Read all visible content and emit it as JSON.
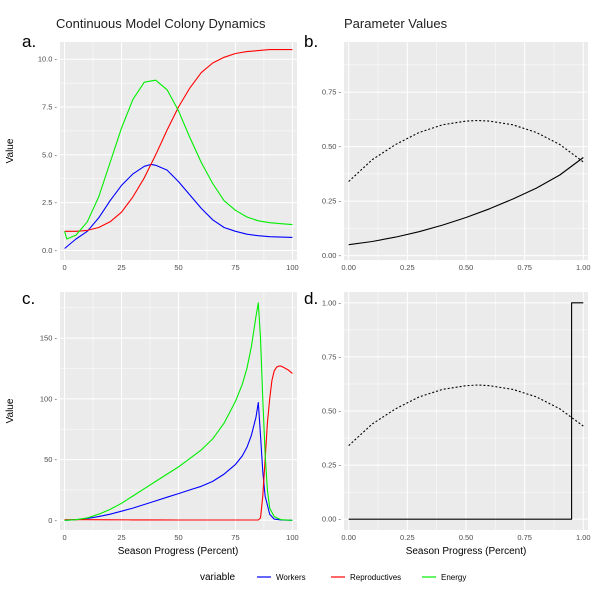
{
  "chart_data": [
    {
      "panel": "a.",
      "title": "Continuous Model Colony Dynamics",
      "type": "line",
      "ylabel": "Value",
      "xlabel": "",
      "xlim": [
        -2,
        102
      ],
      "ylim": [
        -0.5,
        10.9
      ],
      "xticks": [
        0,
        25,
        50,
        75,
        100
      ],
      "yticks": [
        0.0,
        2.5,
        5.0,
        7.5,
        10.0
      ],
      "ytick_labels": [
        "0.0 -",
        "2.5 -",
        "5.0 -",
        "7.5 -",
        "10.0 -"
      ],
      "grid": true,
      "series": [
        {
          "name": "Workers",
          "color": "#0000ff",
          "style": "solid",
          "x": [
            0,
            5,
            10,
            15,
            20,
            25,
            30,
            35,
            38,
            40,
            45,
            50,
            55,
            60,
            65,
            70,
            75,
            80,
            85,
            90,
            95,
            100
          ],
          "y": [
            0.1,
            0.6,
            1.0,
            1.7,
            2.6,
            3.4,
            4.0,
            4.4,
            4.5,
            4.45,
            4.2,
            3.6,
            2.9,
            2.2,
            1.6,
            1.2,
            1.0,
            0.85,
            0.77,
            0.72,
            0.7,
            0.68
          ]
        },
        {
          "name": "Reproductives",
          "color": "#ff0000",
          "style": "solid",
          "x": [
            0,
            5,
            10,
            15,
            20,
            25,
            30,
            35,
            40,
            45,
            50,
            55,
            60,
            65,
            70,
            75,
            80,
            85,
            90,
            95,
            100
          ],
          "y": [
            1.0,
            1.0,
            1.05,
            1.2,
            1.5,
            2.0,
            2.8,
            3.8,
            5.0,
            6.3,
            7.5,
            8.5,
            9.3,
            9.8,
            10.1,
            10.3,
            10.4,
            10.45,
            10.5,
            10.5,
            10.5
          ]
        },
        {
          "name": "Energy",
          "color": "#00ee00",
          "style": "solid",
          "x": [
            0,
            1,
            5,
            10,
            15,
            20,
            25,
            30,
            35,
            40,
            45,
            50,
            55,
            60,
            65,
            70,
            75,
            80,
            85,
            90,
            95,
            100
          ],
          "y": [
            1.0,
            0.6,
            0.8,
            1.5,
            2.8,
            4.6,
            6.4,
            7.9,
            8.8,
            8.9,
            8.4,
            7.3,
            5.9,
            4.6,
            3.5,
            2.6,
            2.1,
            1.75,
            1.55,
            1.45,
            1.4,
            1.35
          ]
        }
      ]
    },
    {
      "panel": "b.",
      "title": "Parameter Values",
      "type": "line",
      "ylabel": "",
      "xlabel": "",
      "xlim": [
        -0.02,
        1.02
      ],
      "ylim": [
        -0.02,
        0.98
      ],
      "xticks": [
        0.0,
        0.25,
        0.5,
        0.75,
        1.0
      ],
      "xtick_labels": [
        "0.00",
        "0.25",
        "0.50",
        "0.75",
        "1.00"
      ],
      "yticks": [
        0.0,
        0.25,
        0.5,
        0.75
      ],
      "ytick_labels": [
        "0.00 -",
        "0.25 -",
        "0.50 -",
        "0.75 -"
      ],
      "grid": true,
      "series": [
        {
          "color": "#000000",
          "style": "solid",
          "x": [
            0,
            0.1,
            0.2,
            0.3,
            0.4,
            0.5,
            0.6,
            0.7,
            0.8,
            0.9,
            1.0
          ],
          "y": [
            0.05,
            0.065,
            0.085,
            0.11,
            0.14,
            0.175,
            0.215,
            0.26,
            0.31,
            0.37,
            0.45
          ]
        },
        {
          "color": "#000000",
          "style": "dotted",
          "x": [
            0,
            0.1,
            0.2,
            0.3,
            0.4,
            0.5,
            0.55,
            0.6,
            0.7,
            0.8,
            0.9,
            1.0
          ],
          "y": [
            0.34,
            0.44,
            0.51,
            0.565,
            0.6,
            0.617,
            0.62,
            0.617,
            0.6,
            0.565,
            0.51,
            0.43
          ]
        }
      ]
    },
    {
      "panel": "c.",
      "type": "line",
      "ylabel": "Value",
      "xlabel": "Season Progress (Percent)",
      "xlim": [
        -2,
        102
      ],
      "ylim": [
        -8,
        188
      ],
      "xticks": [
        0,
        25,
        50,
        75,
        100
      ],
      "yticks": [
        0,
        50,
        100,
        150
      ],
      "ytick_labels": [
        "0 -",
        "50 -",
        "100 -",
        "150 -"
      ],
      "grid": true,
      "series": [
        {
          "name": "Workers",
          "color": "#0000ff",
          "style": "solid",
          "x": [
            0,
            5,
            10,
            15,
            20,
            25,
            30,
            35,
            40,
            45,
            50,
            55,
            60,
            65,
            70,
            75,
            78,
            80,
            82,
            84,
            85,
            86,
            87,
            88,
            90,
            92,
            95,
            100
          ],
          "y": [
            0,
            0.5,
            1.5,
            3,
            5,
            7.5,
            10,
            13,
            16,
            19,
            22,
            25,
            28,
            32,
            38,
            46,
            53,
            60,
            70,
            85,
            97,
            70,
            40,
            20,
            5,
            1,
            0.3,
            0
          ]
        },
        {
          "name": "Reproductives",
          "color": "#ff0000",
          "style": "solid",
          "x": [
            0,
            10,
            20,
            30,
            40,
            50,
            60,
            70,
            80,
            85,
            86,
            87,
            88,
            89,
            90,
            91,
            92,
            93,
            94,
            95,
            96,
            97,
            98,
            100
          ],
          "y": [
            0.5,
            0.5,
            0.4,
            0.3,
            0.3,
            0.2,
            0.2,
            0.2,
            0.2,
            0.2,
            2,
            20,
            50,
            80,
            100,
            115,
            123,
            126,
            127,
            127,
            126,
            125,
            124,
            121
          ]
        },
        {
          "name": "Energy",
          "color": "#00ee00",
          "style": "solid",
          "x": [
            0,
            5,
            10,
            15,
            20,
            25,
            30,
            35,
            40,
            45,
            50,
            55,
            60,
            65,
            70,
            75,
            78,
            80,
            82,
            84,
            85,
            86,
            87,
            88,
            89,
            90,
            92,
            95,
            100
          ],
          "y": [
            0,
            0.5,
            2,
            5,
            9,
            14,
            20,
            26,
            32,
            38,
            44,
            51,
            58,
            67,
            80,
            98,
            112,
            125,
            143,
            168,
            179,
            150,
            100,
            55,
            25,
            10,
            3,
            0.5,
            0
          ]
        }
      ]
    },
    {
      "panel": "d.",
      "type": "line",
      "ylabel": "",
      "xlabel": "Season Progress (Percent)",
      "xlim": [
        -0.02,
        1.02
      ],
      "ylim": [
        -0.05,
        1.05
      ],
      "xticks": [
        0.0,
        0.25,
        0.5,
        0.75,
        1.0
      ],
      "xtick_labels": [
        "0.00",
        "0.25",
        "0.50",
        "0.75",
        "1.00"
      ],
      "yticks": [
        0.0,
        0.25,
        0.5,
        0.75,
        1.0
      ],
      "ytick_labels": [
        "0.00 -",
        "0.25 -",
        "0.50 -",
        "0.75 -",
        "1.00 -"
      ],
      "grid": true,
      "series": [
        {
          "color": "#000000",
          "style": "solid",
          "x": [
            0,
            0.95,
            0.95,
            1.0
          ],
          "y": [
            0,
            0,
            1,
            1
          ]
        },
        {
          "color": "#000000",
          "style": "dotted",
          "x": [
            0,
            0.1,
            0.2,
            0.3,
            0.4,
            0.5,
            0.55,
            0.6,
            0.7,
            0.8,
            0.9,
            1.0
          ],
          "y": [
            0.34,
            0.44,
            0.51,
            0.565,
            0.6,
            0.617,
            0.62,
            0.617,
            0.6,
            0.565,
            0.51,
            0.43
          ]
        }
      ]
    }
  ],
  "legend": {
    "title": "variable",
    "items": [
      {
        "label": "Workers",
        "color": "#0000ff"
      },
      {
        "label": "Reproductives",
        "color": "#ff0000"
      },
      {
        "label": "Energy",
        "color": "#00ee00"
      }
    ]
  }
}
